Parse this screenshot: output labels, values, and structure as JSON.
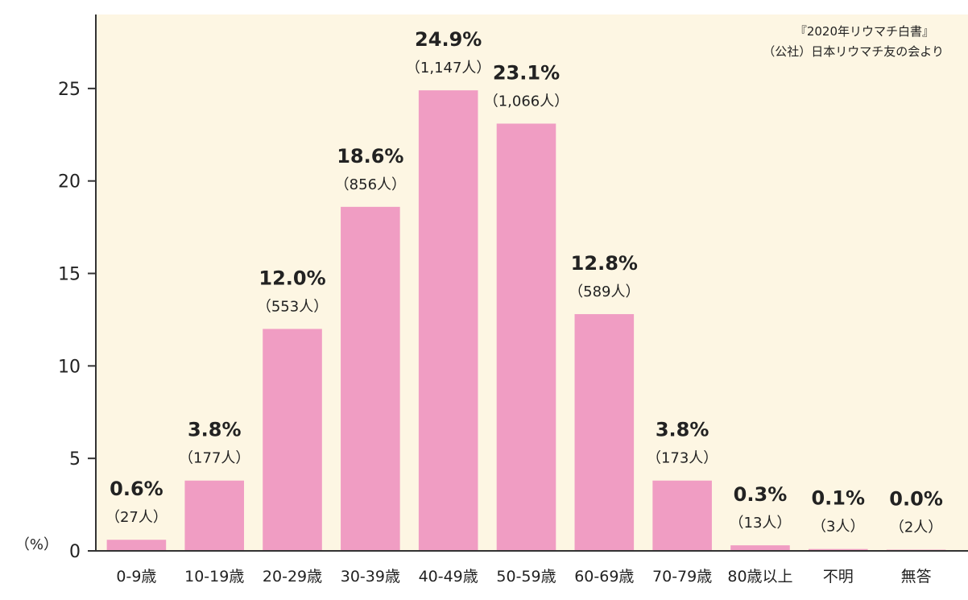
{
  "chart_data": {
    "type": "bar",
    "categories": [
      "0-9歳",
      "10-19歳",
      "20-29歳",
      "30-39歳",
      "40-49歳",
      "50-59歳",
      "60-69歳",
      "70-79歳",
      "80歳以上",
      "不明",
      "無答"
    ],
    "values": [
      0.6,
      3.8,
      12.0,
      18.6,
      24.9,
      23.1,
      12.8,
      3.8,
      0.3,
      0.1,
      0.0
    ],
    "value_labels": [
      "0.6%",
      "3.8%",
      "12.0%",
      "18.6%",
      "24.9%",
      "23.1%",
      "12.8%",
      "3.8%",
      "0.3%",
      "0.1%",
      "0.0%"
    ],
    "count_labels": [
      "（27人）",
      "（177人）",
      "（553人）",
      "（856人）",
      "（1,147人）",
      "（1,066人）",
      "（589人）",
      "（173人）",
      "（13人）",
      "（3人）",
      "（2人）"
    ],
    "ylim": [
      0,
      29
    ],
    "yticks": [
      0,
      5,
      10,
      15,
      20,
      25
    ],
    "ylabel": "（%）",
    "source": [
      "『2020年リウマチ白書』",
      "（公社）日本リウマチ友の会より"
    ],
    "colors": {
      "bar": "#f09dc3",
      "background": "#fdf6e3",
      "axis": "#333333"
    },
    "grid": false
  }
}
